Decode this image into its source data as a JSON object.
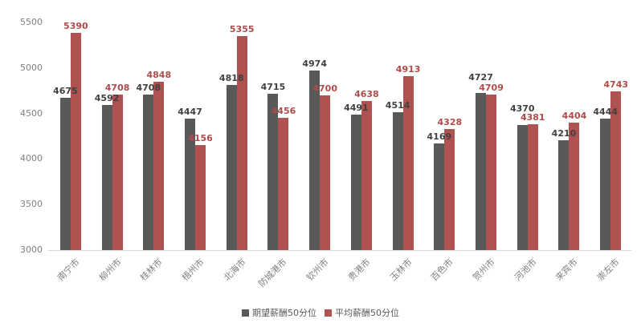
{
  "chart_data": {
    "type": "bar",
    "title": "",
    "xlabel": "",
    "ylabel": "",
    "categories": [
      "南宁市",
      "柳州市",
      "桂林市",
      "梧州市",
      "北海市",
      "防城港市",
      "钦州市",
      "贵港市",
      "玉林市",
      "百色市",
      "贺州市",
      "河池市",
      "来宾市",
      "崇左市"
    ],
    "series": [
      {
        "name": "期望薪酬50分位",
        "color": "#595959",
        "label_color": "#404040",
        "values": [
          4675,
          4592,
          4708,
          4447,
          4818,
          4715,
          4974,
          4491,
          4514,
          4169,
          4727,
          4370,
          4210,
          4444
        ]
      },
      {
        "name": "平均薪酬50分位",
        "color": "#b05252",
        "label_color": "#b04b4a",
        "values": [
          5390,
          4708,
          4848,
          4156,
          5355,
          4456,
          4700,
          4638,
          4913,
          4328,
          4709,
          4381,
          4404,
          4743
        ]
      }
    ],
    "ylim": [
      3000,
      5500
    ],
    "yticks": [
      3000,
      3500,
      4000,
      4500,
      5000,
      5500
    ],
    "grid": false,
    "legend_position": "bottom",
    "data_labels": true,
    "axis_line_color": "#d9d9d9",
    "axis_text_color": "#7f7f7f"
  }
}
